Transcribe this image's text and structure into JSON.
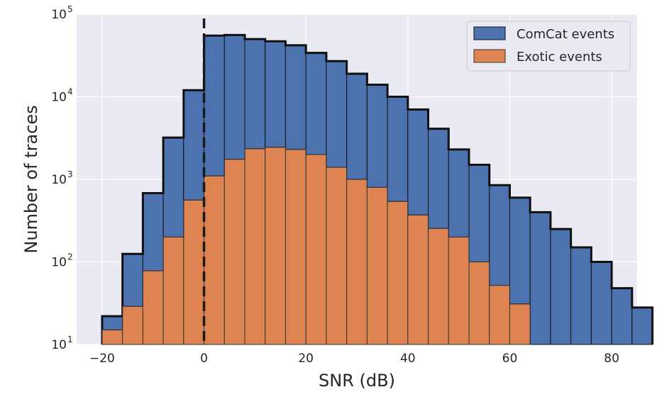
{
  "chart_data": {
    "type": "bar",
    "subtype": "histogram",
    "title": "",
    "xlabel": "SNR (dB)",
    "ylabel": "Number of traces",
    "xlim": [
      -25,
      85
    ],
    "ylim": [
      10,
      100000
    ],
    "yscale": "log",
    "grid": true,
    "legend_position": "top-right",
    "bin_width": 4,
    "reference_line": {
      "x": 0,
      "style": "dashed",
      "color": "#1a1a1a"
    },
    "x_ticks": [
      -20,
      0,
      20,
      40,
      60,
      80
    ],
    "x_tick_labels": [
      "−20",
      "0",
      "20",
      "40",
      "60",
      "80"
    ],
    "y_ticks": [
      {
        "value": 10,
        "base": "10",
        "exp": "1"
      },
      {
        "value": 100,
        "base": "10",
        "exp": "2"
      },
      {
        "value": 1000,
        "base": "10",
        "exp": "3"
      },
      {
        "value": 10000,
        "base": "10",
        "exp": "4"
      },
      {
        "value": 100000,
        "base": "10",
        "exp": "5"
      }
    ],
    "series": [
      {
        "name": "ComCat events",
        "color": "#4c72b0",
        "edge_color": "#111111",
        "bins": [
          [
            -20,
            -16,
            22
          ],
          [
            -16,
            -12,
            125
          ],
          [
            -12,
            -8,
            680
          ],
          [
            -8,
            -4,
            3200
          ],
          [
            -4,
            0,
            12000
          ],
          [
            0,
            4,
            55000
          ],
          [
            4,
            8,
            56000
          ],
          [
            8,
            12,
            50000
          ],
          [
            12,
            16,
            47000
          ],
          [
            16,
            20,
            42000
          ],
          [
            20,
            24,
            34000
          ],
          [
            24,
            28,
            27000
          ],
          [
            28,
            32,
            19000
          ],
          [
            32,
            36,
            14000
          ],
          [
            36,
            40,
            10000
          ],
          [
            40,
            44,
            7000
          ],
          [
            44,
            48,
            4100
          ],
          [
            48,
            52,
            2300
          ],
          [
            52,
            56,
            1500
          ],
          [
            56,
            60,
            850
          ],
          [
            60,
            64,
            600
          ],
          [
            64,
            68,
            400
          ],
          [
            68,
            72,
            250
          ],
          [
            72,
            76,
            150
          ],
          [
            76,
            80,
            100
          ],
          [
            80,
            84,
            48
          ],
          [
            84,
            88,
            28
          ]
        ]
      },
      {
        "name": "Exotic events",
        "color": "#dd8452",
        "edge_color": "#333333",
        "bins": [
          [
            -20,
            -16,
            15
          ],
          [
            -16,
            -12,
            29
          ],
          [
            -12,
            -8,
            78
          ],
          [
            -8,
            -4,
            200
          ],
          [
            -4,
            0,
            560
          ],
          [
            0,
            4,
            1100
          ],
          [
            4,
            8,
            1750
          ],
          [
            8,
            12,
            2350
          ],
          [
            12,
            16,
            2450
          ],
          [
            16,
            20,
            2300
          ],
          [
            20,
            24,
            2000
          ],
          [
            24,
            28,
            1400
          ],
          [
            28,
            32,
            1000
          ],
          [
            32,
            36,
            800
          ],
          [
            36,
            40,
            540
          ],
          [
            40,
            44,
            370
          ],
          [
            44,
            48,
            255
          ],
          [
            48,
            52,
            200
          ],
          [
            52,
            56,
            100
          ],
          [
            56,
            60,
            52
          ],
          [
            60,
            64,
            31
          ]
        ]
      }
    ]
  }
}
